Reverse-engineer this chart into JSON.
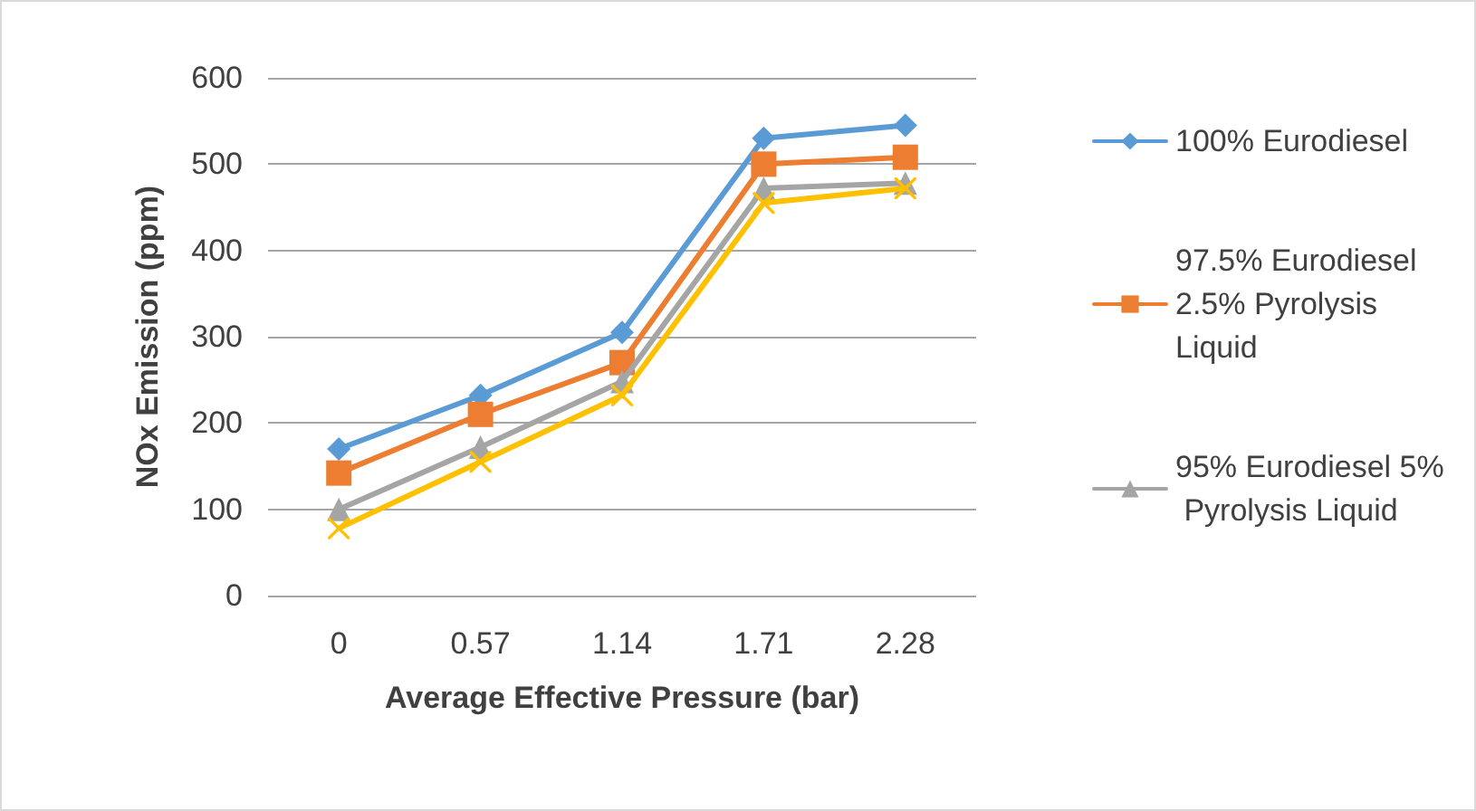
{
  "chart_data": {
    "type": "line",
    "xlabel": "Average Effective Pressure (bar)",
    "ylabel": "NOx Emission (ppm)",
    "categories": [
      "0",
      "0.57",
      "1.14",
      "1.71",
      "2.28"
    ],
    "series": [
      {
        "name": "100% Eurodiesel",
        "color": "#5b9bd5",
        "marker": "diamond",
        "values": [
          170,
          232,
          305,
          530,
          545
        ]
      },
      {
        "name": "97.5% Eurodiesel 2.5% Pyrolysis Liquid",
        "color": "#ed7d31",
        "marker": "square",
        "values": [
          142,
          210,
          270,
          500,
          508
        ]
      },
      {
        "name": "95% Eurodiesel 5% Pyrolysis Liquid",
        "color": "#a5a5a5",
        "marker": "triangle",
        "values": [
          100,
          172,
          248,
          472,
          478
        ]
      },
      {
        "color": "#ffc000",
        "marker": "cross",
        "values": [
          78,
          155,
          232,
          455,
          472
        ]
      }
    ],
    "ylim": [
      0,
      600
    ],
    "yticks": [
      0,
      100,
      200,
      300,
      400,
      500,
      600
    ],
    "grid": "y",
    "legend": "right",
    "line_style": "solid"
  }
}
